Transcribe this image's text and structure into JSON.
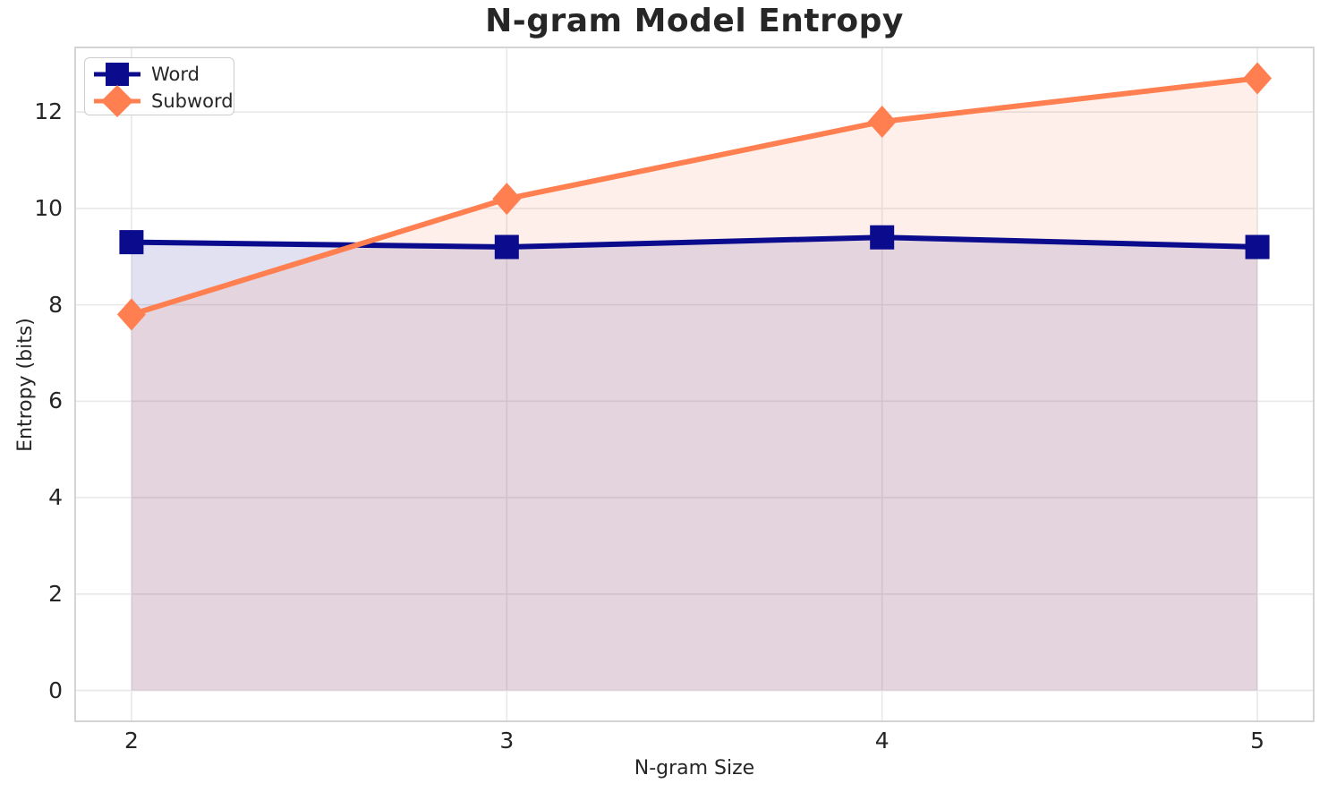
{
  "chart_data": {
    "type": "line",
    "title": "N-gram Model Entropy",
    "xlabel": "N-gram Size",
    "ylabel": "Entropy (bits)",
    "x": [
      2,
      3,
      4,
      5
    ],
    "series": [
      {
        "name": "Word",
        "color": "#0b0b8d",
        "marker": "square",
        "values": [
          9.3,
          9.2,
          9.4,
          9.2
        ]
      },
      {
        "name": "Subword",
        "color": "#ff7f50",
        "marker": "diamond",
        "values": [
          7.8,
          10.2,
          11.8,
          12.7
        ]
      }
    ],
    "xticks": [
      "2",
      "3",
      "4",
      "5"
    ],
    "xtick_values": [
      2,
      3,
      4,
      5
    ],
    "yticks": [
      "0",
      "2",
      "4",
      "6",
      "8",
      "10",
      "12"
    ],
    "ytick_values": [
      0,
      2,
      4,
      6,
      8,
      10,
      12
    ],
    "xlim": [
      1.85,
      5.15
    ],
    "ylim": [
      -0.64,
      13.34
    ],
    "fill_baseline": 0,
    "fill_alpha": 0.12,
    "grid": true,
    "grid_color": "#e8e8e8",
    "spine_color": "#d4d4d4",
    "legend_position": "upper left"
  }
}
